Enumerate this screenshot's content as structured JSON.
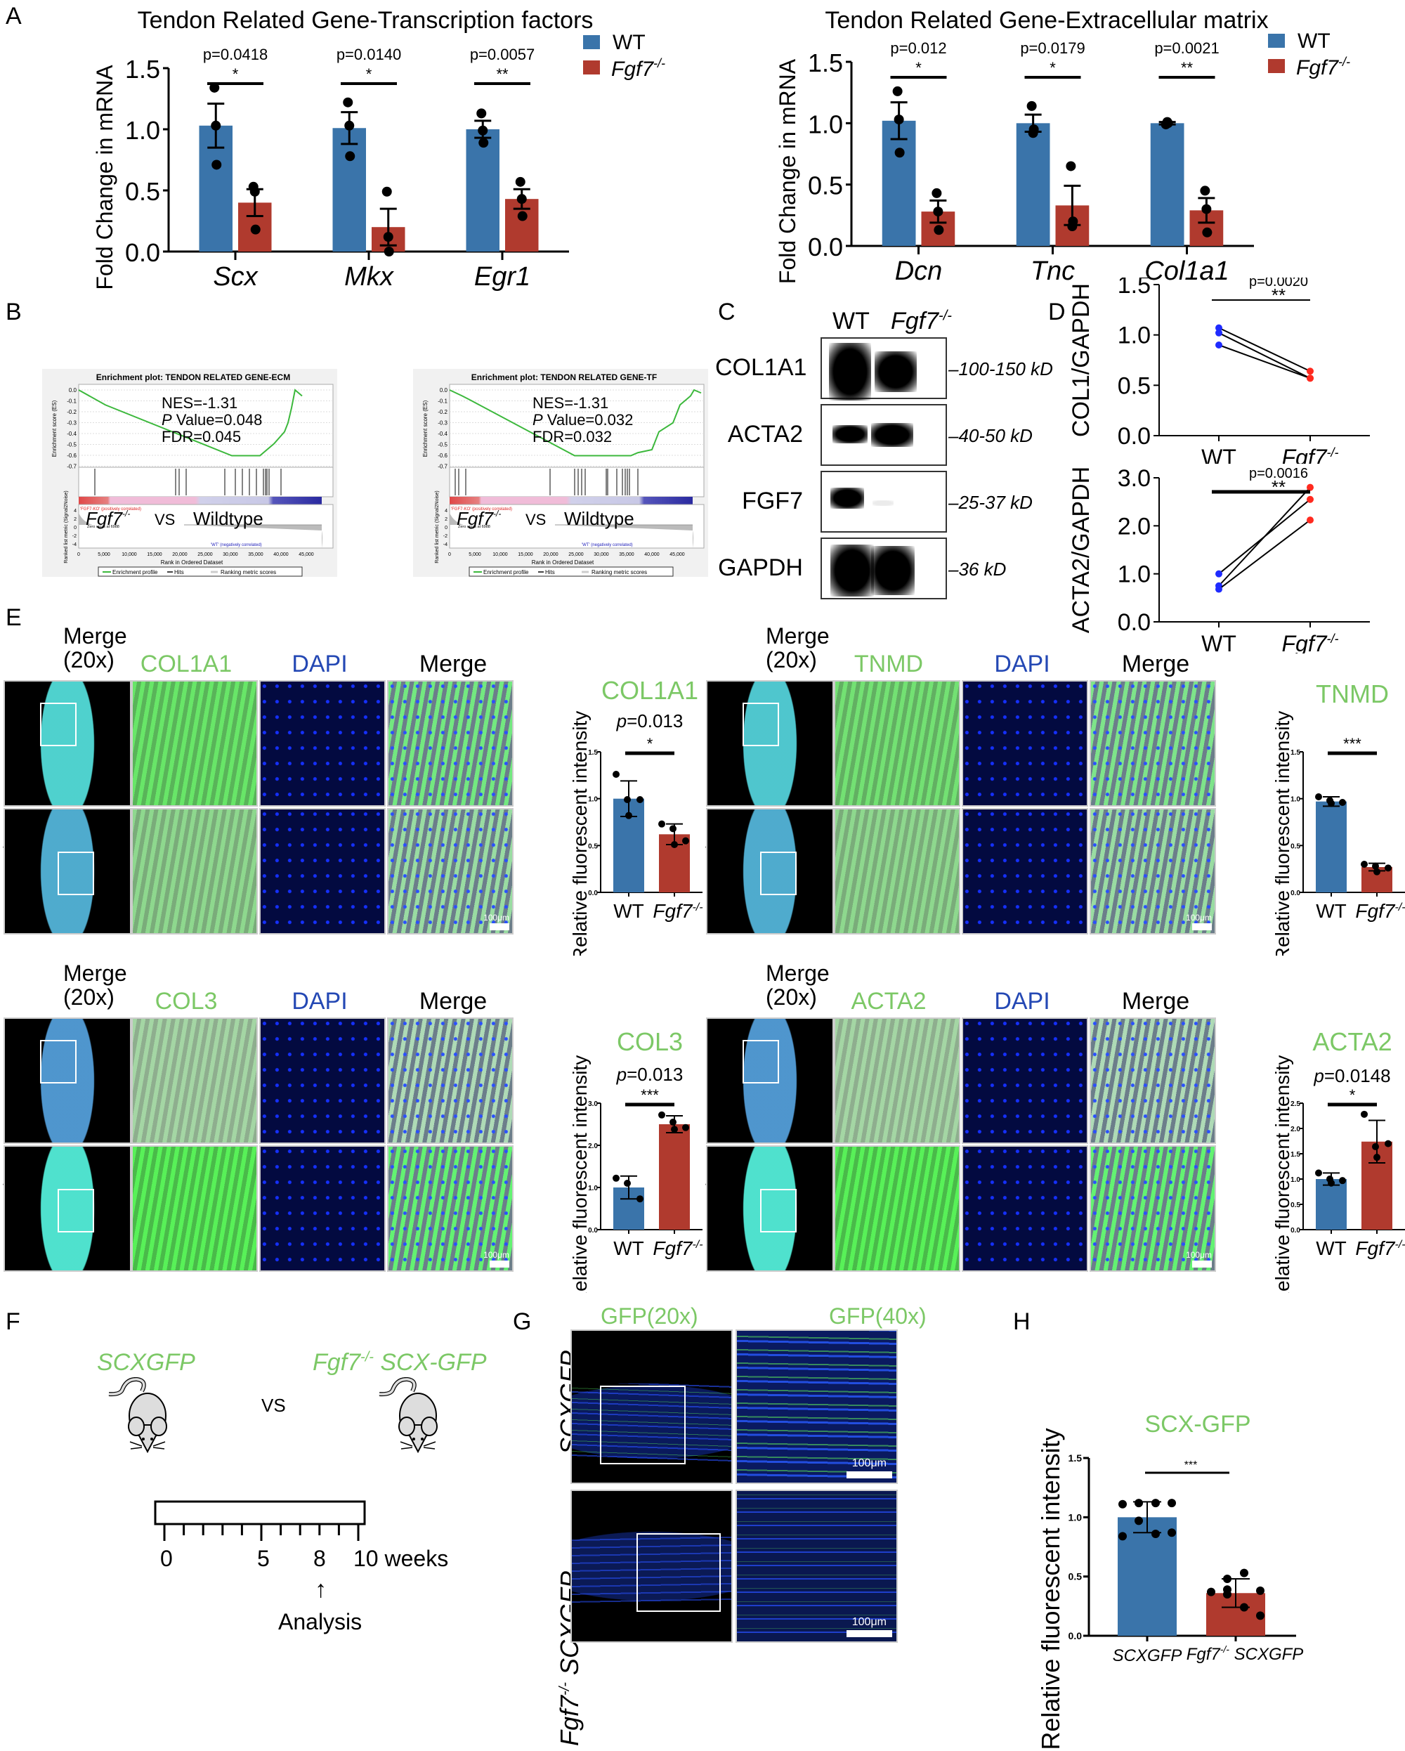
{
  "colors": {
    "wt": "#3a74aa",
    "ko": "#b03a2e",
    "green_label": "#7cc866",
    "dapi_label": "#2448b4",
    "point_wt": "#1f2bff",
    "point_ko": "#ff2a1f"
  },
  "panel_letters": {
    "A": "A",
    "B": "B",
    "C": "C",
    "D": "D",
    "E": "E",
    "F": "F",
    "G": "G",
    "H": "H"
  },
  "legend": {
    "wt": "WT",
    "ko": "Fgf7",
    "ko_sup": "-/-"
  },
  "chart_data": [
    {
      "id": "A1",
      "type": "bar",
      "title": "Tendon Related Gene-Transcription factors",
      "ylabel": "Fold Change in mRNA",
      "ylim": [
        0,
        1.5
      ],
      "yticks": [
        "0.0",
        "0.5",
        "1.0",
        "1.5"
      ],
      "categories": [
        "Scx",
        "Mkx",
        "Egr1"
      ],
      "series": [
        {
          "name": "WT",
          "values": [
            1.03,
            1.01,
            1.0
          ],
          "sem": [
            0.18,
            0.13,
            0.07
          ],
          "points": [
            [
              1.34,
              1.03,
              0.71
            ],
            [
              1.22,
              1.03,
              0.78
            ],
            [
              1.13,
              0.99,
              0.89
            ]
          ]
        },
        {
          "name": "Fgf7-/-",
          "values": [
            0.4,
            0.2,
            0.43
          ],
          "sem": [
            0.11,
            0.15,
            0.08
          ],
          "points": [
            [
              0.53,
              0.49,
              0.18
            ],
            [
              0.49,
              0.12,
              0.0
            ],
            [
              0.57,
              0.43,
              0.29
            ]
          ]
        }
      ],
      "annotations": [
        {
          "p": "p=0.0418",
          "stars": "*"
        },
        {
          "p": "p=0.0140",
          "stars": "*"
        },
        {
          "p": "p=0.0057",
          "stars": "**"
        }
      ]
    },
    {
      "id": "A2",
      "type": "bar",
      "title": "Tendon Related Gene-Extracellular matrix",
      "ylabel": "Fold Change in mRNA",
      "ylim": [
        0,
        1.5
      ],
      "yticks": [
        "0.0",
        "0.5",
        "1.0",
        "1.5"
      ],
      "categories": [
        "Dcn",
        "Tnc",
        "Col1a1"
      ],
      "series": [
        {
          "name": "WT",
          "values": [
            1.02,
            1.0,
            1.0
          ],
          "sem": [
            0.15,
            0.07,
            0.01
          ],
          "points": [
            [
              1.26,
              1.03,
              0.76
            ],
            [
              1.14,
              0.92,
              0.95
            ],
            [
              0.99,
              1.01,
              1.0
            ]
          ]
        },
        {
          "name": "Fgf7-/-",
          "values": [
            0.28,
            0.33,
            0.29
          ],
          "sem": [
            0.09,
            0.16,
            0.1
          ],
          "points": [
            [
              0.43,
              0.28,
              0.13
            ],
            [
              0.65,
              0.16,
              0.2
            ],
            [
              0.45,
              0.3,
              0.11
            ]
          ]
        }
      ],
      "annotations": [
        {
          "p": "p=0.012",
          "stars": "*"
        },
        {
          "p": "p=0.0179",
          "stars": "*"
        },
        {
          "p": "p=0.0021",
          "stars": "**"
        }
      ]
    },
    {
      "id": "D1",
      "type": "line",
      "ylabel": "COL1/GAPDH",
      "ylim": [
        0,
        1.5
      ],
      "yticks": [
        "0.0",
        "0.5",
        "1.0",
        "1.5"
      ],
      "categories": [
        "WT",
        "Fgf7-/-"
      ],
      "pairs": [
        [
          1.07,
          0.64
        ],
        [
          1.02,
          0.57
        ],
        [
          0.9,
          0.57
        ]
      ],
      "annotation": {
        "p": "p=0.0020",
        "stars": "**"
      }
    },
    {
      "id": "D2",
      "type": "line",
      "ylabel": "ACTA2/GAPDH",
      "ylim": [
        0,
        3.0
      ],
      "yticks": [
        "0.0",
        "1.0",
        "2.0",
        "3.0"
      ],
      "categories": [
        "WT",
        "Fgf7-/-"
      ],
      "pairs": [
        [
          1.0,
          2.55
        ],
        [
          0.75,
          2.8
        ],
        [
          0.68,
          2.12
        ]
      ],
      "annotation": {
        "p": "p=0.0016",
        "stars": "**"
      }
    },
    {
      "id": "E-COL1A1",
      "type": "bar",
      "title": "COL1A1",
      "ylabel": "Relative fluorescent intensity",
      "ylim": [
        0,
        1.5
      ],
      "yticks": [
        "0.0",
        "0.5",
        "1.0",
        "1.5"
      ],
      "categories": [
        "WT",
        "Fgf7-/-"
      ],
      "values": [
        1.0,
        0.62
      ],
      "sd": [
        0.19,
        0.11
      ],
      "points": [
        [
          1.26,
          0.99,
          0.99,
          0.82
        ],
        [
          0.73,
          0.68,
          0.55,
          0.51
        ]
      ],
      "annotation": {
        "p": "p=0.013",
        "stars": "*"
      }
    },
    {
      "id": "E-TNMD",
      "type": "bar",
      "title": "TNMD",
      "ylabel": "Relative fluorescent intensity",
      "ylim": [
        0,
        1.5
      ],
      "yticks": [
        "0.0",
        "0.5",
        "1.0",
        "1.5"
      ],
      "categories": [
        "WT",
        "Fgf7-/-"
      ],
      "values": [
        0.97,
        0.27
      ],
      "sd": [
        0.05,
        0.04
      ],
      "points": [
        [
          1.02,
          0.98,
          0.96,
          0.95
        ],
        [
          0.3,
          0.28,
          0.26,
          0.22
        ]
      ],
      "annotation": {
        "p": "",
        "stars": "***"
      }
    },
    {
      "id": "E-COL3",
      "type": "bar",
      "title": "COL3",
      "ylabel": "Relative fluorescent intensity",
      "ylim": [
        0,
        3.0
      ],
      "yticks": [
        "0.0",
        "1.0",
        "2.0",
        "3.0"
      ],
      "categories": [
        "WT",
        "Fgf7-/-"
      ],
      "values": [
        1.0,
        2.5
      ],
      "sd": [
        0.27,
        0.2
      ],
      "points": [
        [
          1.22,
          1.1,
          0.73
        ],
        [
          2.72,
          2.55,
          2.42,
          2.38
        ]
      ],
      "annotation": {
        "p": "p=0.013",
        "stars": "***"
      }
    },
    {
      "id": "E-ACTA2",
      "type": "bar",
      "title": "ACTA2",
      "ylabel": "Relative fluorescent intensity",
      "ylim": [
        0,
        2.5
      ],
      "yticks": [
        "0.0",
        "0.5",
        "1.0",
        "1.5",
        "2.0",
        "2.5"
      ],
      "categories": [
        "WT",
        "Fgf7-/-"
      ],
      "values": [
        1.0,
        1.74
      ],
      "sd": [
        0.12,
        0.42
      ],
      "points": [
        [
          1.12,
          1.0,
          0.97,
          0.92
        ],
        [
          2.28,
          1.64,
          1.7,
          1.43
        ]
      ],
      "annotation": {
        "p": "p=0.0148",
        "stars": "*"
      }
    },
    {
      "id": "H",
      "type": "bar",
      "title": "SCX-GFP",
      "ylabel": "Relative fluorescent intensity",
      "ylim": [
        0,
        1.5
      ],
      "yticks": [
        "0.0",
        "0.5",
        "1.0",
        "1.5"
      ],
      "categories": [
        "SCXGFP",
        "Fgf7-/- SCXGFP"
      ],
      "values": [
        1.0,
        0.36
      ],
      "sd": [
        0.13,
        0.12
      ],
      "points": [
        [
          1.11,
          1.12,
          1.12,
          1.12,
          0.97,
          0.84,
          0.86,
          0.87
        ],
        [
          0.37,
          0.48,
          0.53,
          0.38,
          0.35,
          0.39,
          0.24,
          0.17
        ]
      ],
      "annotation": {
        "p": "",
        "stars": "***"
      }
    }
  ],
  "gsea": [
    {
      "title": "Enrichment plot: TENDON RELATED GENE-ECM",
      "nes": "NES=-1.31",
      "pvalue_p": "P",
      "pvalue": " Value=0.048",
      "fdr": "FDR=0.045",
      "es_ticks": [
        "0.0",
        "-0.1",
        "-0.2",
        "-0.3",
        "-0.4",
        "-0.5",
        "-0.6",
        "-0.7"
      ],
      "metric_ticks": [
        "4",
        "2",
        "0",
        "-2",
        "-4"
      ],
      "x_ticks": [
        "0",
        "5,000",
        "10,000",
        "15,000",
        "20,000",
        "25,000",
        "30,000",
        "35,000",
        "40,000",
        "45,000"
      ],
      "es_ylabel": "Enrichment score (ES)",
      "metric_ylabel": "Ranked list metric (Signal2Noise)",
      "xlabel": "Rank in Ordered Dataset",
      "pos_label": "'FGF7-KO' (positively correlated)",
      "neg_label": "'WT' (negatively correlated)",
      "zero_cross": "Zero cross at 6988",
      "legend": [
        "Enrichment profile",
        "Hits",
        "Ranking metric scores"
      ],
      "left": "Fgf7",
      "left_sup": "-/-",
      "vs": "VS",
      "right": "Wildtype"
    },
    {
      "title": "Enrichment plot: TENDON RELATED GENE-TF",
      "nes": "NES=-1.31",
      "pvalue_p": "P",
      "pvalue": " Value=0.032",
      "fdr": "FDR=0.032",
      "es_ticks": [
        "0.0",
        "-0.1",
        "-0.2",
        "-0.3",
        "-0.4",
        "-0.5",
        "-0.6",
        "-0.7"
      ],
      "metric_ticks": [
        "4",
        "2",
        "0",
        "-2",
        "-4"
      ],
      "x_ticks": [
        "0",
        "5,000",
        "10,000",
        "15,000",
        "20,000",
        "25,000",
        "30,000",
        "35,000",
        "40,000",
        "45,000"
      ],
      "es_ylabel": "Enrichment score (ES)",
      "metric_ylabel": "Ranked list metric (Signal2Noise)",
      "xlabel": "Rank in Ordered Dataset",
      "pos_label": "'FGF7-KO' (positively correlated)",
      "neg_label": "'WT' (negatively correlated)",
      "zero_cross": "Zero cross at 6988",
      "legend": [
        "Enrichment profile",
        "Hits",
        "Ranking metric scores"
      ],
      "left": "Fgf7",
      "left_sup": "-/-",
      "vs": "VS",
      "right": "Wildtype"
    }
  ],
  "western": {
    "lanes": [
      "WT",
      "Fgf7"
    ],
    "lane_sup": "-/-",
    "rows": [
      {
        "protein": "COL1A1",
        "kd": "100-150 kD"
      },
      {
        "protein": "ACTA2",
        "kd": "40-50 kD"
      },
      {
        "protein": "FGF7",
        "kd": "25-37 kD"
      },
      {
        "protein": "GAPDH",
        "kd": "36 kD"
      }
    ]
  },
  "if_panels": [
    {
      "marker": "COL1A1",
      "merge20": "Merge",
      "merge20b": "(20x)",
      "dapi": "DAPI",
      "merge": "Merge",
      "scale": "100μm"
    },
    {
      "marker": "TNMD",
      "merge20": "Merge",
      "merge20b": "(20x)",
      "dapi": "DAPI",
      "merge": "Merge",
      "scale": "100μm"
    },
    {
      "marker": "COL3",
      "merge20": "Merge",
      "merge20b": "(20x)",
      "dapi": "DAPI",
      "merge": "Merge",
      "scale": "100μm"
    },
    {
      "marker": "ACTA2",
      "merge20": "Merge",
      "merge20b": "(20x)",
      "dapi": "DAPI",
      "merge": "Merge",
      "scale": "100μm"
    }
  ],
  "rows": {
    "wt": "Wildtype",
    "ko": "Fgf7",
    "ko_sup": "-/-"
  },
  "panel_f": {
    "left_mouse": "SCXGFP",
    "right_mouse_a": "Fgf7",
    "right_mouse_sup": "-/-",
    "right_mouse_b": " SCX-GFP",
    "vs": "VS",
    "ticks": [
      "0",
      "5",
      "8",
      "10 weeks"
    ],
    "analysis": "Analysis"
  },
  "panel_g": {
    "col1": "GFP(20x)",
    "col2": "GFP(40x)",
    "row1": "SCXGFP",
    "row2_a": "Fgf7",
    "row2_sup": "-/-",
    "row2_b": " SCXGFP",
    "scale": "100μm"
  }
}
